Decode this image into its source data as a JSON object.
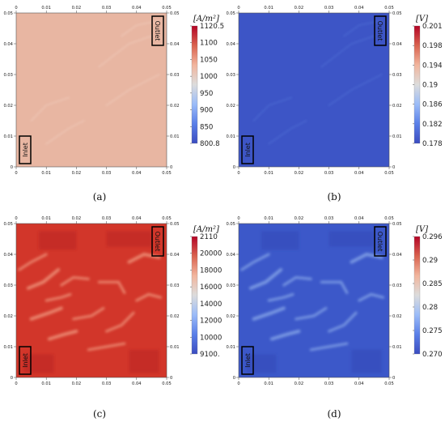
{
  "panels": [
    {
      "id": "a",
      "caption": "(a)",
      "unit": "[A/m²]",
      "colorbar_ticks": [
        "1120.5",
        "1100",
        "1050",
        "1000",
        "950",
        "900",
        "850",
        "800.8"
      ],
      "field_color": "#e7b5a1",
      "x_ticks": [
        "0",
        "0.01",
        "0.02",
        "0.03",
        "0.04",
        "0.05"
      ],
      "y_ticks": [
        "0",
        "0.01",
        "0.02",
        "0.03",
        "0.04",
        "0.05"
      ],
      "inlet_label": "Inlet",
      "outlet_label": "Outlet"
    },
    {
      "id": "b",
      "caption": "(b)",
      "unit": "[V]",
      "colorbar_ticks": [
        "0.201",
        "0.198",
        "0.194",
        "0.19",
        "0.186",
        "0.182",
        "0.178"
      ],
      "field_color": "#3a55c8",
      "x_ticks": [
        "0",
        "0.01",
        "0.02",
        "0.03",
        "0.04",
        "0.05"
      ],
      "y_ticks": [
        "0",
        "0.01",
        "0.02",
        "0.03",
        "0.04",
        "0.05"
      ],
      "inlet_label": "Inlet",
      "outlet_label": "Outlet"
    },
    {
      "id": "c",
      "caption": "(c)",
      "unit": "[A/m²]",
      "colorbar_ticks": [
        "2110",
        "20000",
        "18000",
        "16000",
        "14000",
        "12000",
        "10000",
        "9100."
      ],
      "field_color": "#d63a2c",
      "x_ticks": [
        "0",
        "0.01",
        "0.02",
        "0.03",
        "0.04",
        "0.05"
      ],
      "y_ticks": [
        "0",
        "0.01",
        "0.02",
        "0.03",
        "0.04",
        "0.05"
      ],
      "inlet_label": "Inlet",
      "outlet_label": "Outlet"
    },
    {
      "id": "d",
      "caption": "(d)",
      "unit": "[V]",
      "colorbar_ticks": [
        "0.296",
        "0.29",
        "0.285",
        "0.28",
        "0.275",
        "0.270"
      ],
      "field_color": "#3a59cc",
      "x_ticks": [
        "0",
        "0.01",
        "0.02",
        "0.03",
        "0.04",
        "0.05"
      ],
      "y_ticks": [
        "0",
        "0.01",
        "0.02",
        "0.03",
        "0.04",
        "0.05"
      ],
      "inlet_label": "Inlet",
      "outlet_label": "Outlet"
    }
  ]
}
